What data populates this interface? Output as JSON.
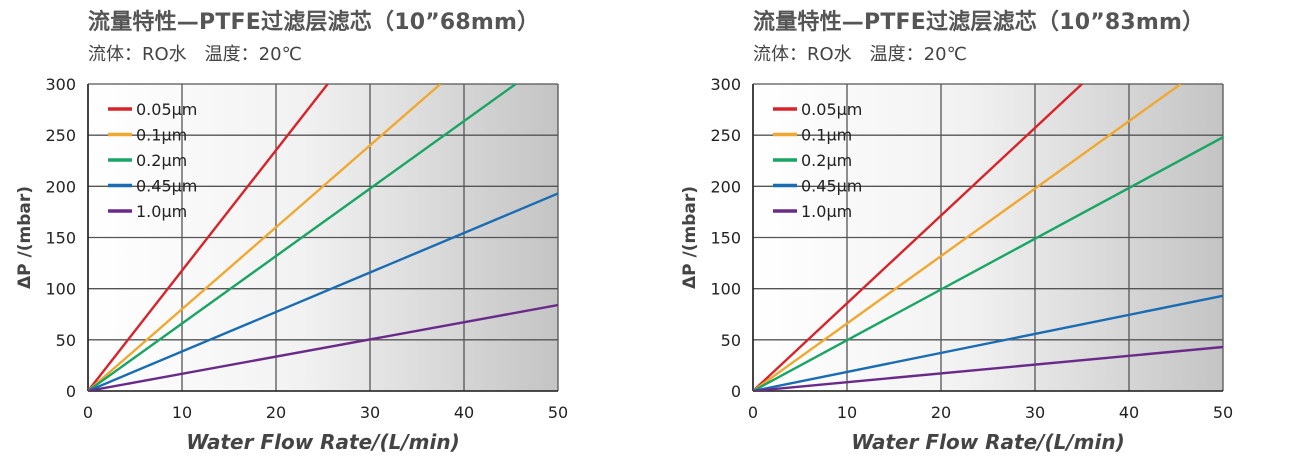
{
  "chart_data": [
    {
      "type": "line",
      "title": "流量特性—PTFE过滤层滤芯（10”68mm）",
      "subtitle": "流体：RO水　温度：20℃",
      "xlabel": "Water Flow Rate/(L/min)",
      "ylabel": "ΔP /(mbar)",
      "xlim": [
        0,
        50
      ],
      "ylim": [
        0,
        300
      ],
      "xticks": [
        0,
        10,
        20,
        30,
        40,
        50
      ],
      "yticks": [
        0,
        50,
        100,
        150,
        200,
        250,
        300
      ],
      "grid": true,
      "legend_position": "top-left",
      "series": [
        {
          "name": "0.05μm",
          "color": "#d9232a",
          "x": [
            0,
            25.5
          ],
          "y": [
            0,
            300
          ]
        },
        {
          "name": "0.1μm",
          "color": "#f0a830",
          "x": [
            0,
            37.5
          ],
          "y": [
            0,
            300
          ]
        },
        {
          "name": "0.2μm",
          "color": "#1aa564",
          "x": [
            0,
            45.5
          ],
          "y": [
            0,
            300
          ]
        },
        {
          "name": "0.45μm",
          "color": "#1a6cb3",
          "x": [
            0,
            50
          ],
          "y": [
            0,
            193
          ]
        },
        {
          "name": "1.0μm",
          "color": "#6a2a8a",
          "x": [
            0,
            50
          ],
          "y": [
            0,
            84
          ]
        }
      ]
    },
    {
      "type": "line",
      "title": "流量特性—PTFE过滤层滤芯（10”83mm）",
      "subtitle": "流体：RO水　温度：20℃",
      "xlabel": "Water Flow Rate/(L/min)",
      "ylabel": "ΔP /(mbar)",
      "xlim": [
        0,
        50
      ],
      "ylim": [
        0,
        300
      ],
      "xticks": [
        0,
        10,
        20,
        30,
        40,
        50
      ],
      "yticks": [
        0,
        50,
        100,
        150,
        200,
        250,
        300
      ],
      "grid": true,
      "legend_position": "top-left",
      "series": [
        {
          "name": "0.05μm",
          "color": "#d9232a",
          "x": [
            0,
            35
          ],
          "y": [
            0,
            300
          ]
        },
        {
          "name": "0.1μm",
          "color": "#f0a830",
          "x": [
            0,
            45.5
          ],
          "y": [
            0,
            300
          ]
        },
        {
          "name": "0.2μm",
          "color": "#1aa564",
          "x": [
            0,
            50
          ],
          "y": [
            0,
            248
          ]
        },
        {
          "name": "0.45μm",
          "color": "#1a6cb3",
          "x": [
            0,
            50
          ],
          "y": [
            0,
            93
          ]
        },
        {
          "name": "1.0μm",
          "color": "#6a2a8a",
          "x": [
            0,
            50
          ],
          "y": [
            0,
            43
          ]
        }
      ]
    }
  ]
}
